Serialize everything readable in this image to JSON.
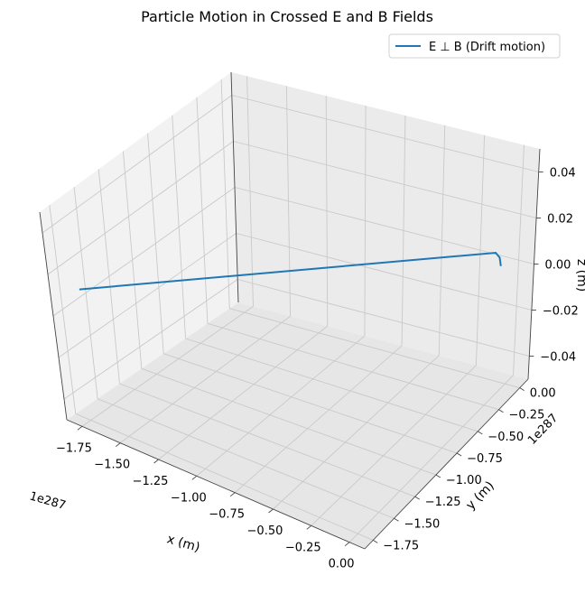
{
  "chart_data": {
    "type": "line3d",
    "title": "Particle Motion in Crossed E and B Fields",
    "xlabel": "x (m)",
    "ylabel": "y (m)",
    "zlabel": "z (m)",
    "x_offset_label": "1e287",
    "y_offset_label": "1e287",
    "x_ticks": [
      "−1.75",
      "−1.50",
      "−1.25",
      "−1.00",
      "−0.75",
      "−0.50",
      "−0.25",
      "0.00"
    ],
    "y_ticks": [
      "0.00",
      "−0.25",
      "−0.50",
      "−0.75",
      "−1.00",
      "−1.25",
      "−1.50",
      "−1.75"
    ],
    "z_ticks": [
      "0.04",
      "0.02",
      "0.00",
      "−0.02",
      "−0.04"
    ],
    "xlim": [
      -1.85,
      0.1
    ],
    "ylim": [
      -1.85,
      0.1
    ],
    "zlim": [
      -0.05,
      0.05
    ],
    "grid": true,
    "legend": {
      "position": "top-right",
      "entries": [
        "E ⊥ B (Drift motion)"
      ]
    },
    "series": [
      {
        "name": "E ⊥ B (Drift motion)",
        "color": "#1f77b4",
        "points": [
          {
            "x": 0.0,
            "y": 0.0,
            "z": 0.0
          },
          {
            "x": 0.0,
            "y": -0.01,
            "z": -0.004
          },
          {
            "x": -0.02,
            "y": -0.02,
            "z": -0.006
          },
          {
            "x": -1.78,
            "y": -1.78,
            "z": -0.006
          }
        ]
      }
    ]
  }
}
